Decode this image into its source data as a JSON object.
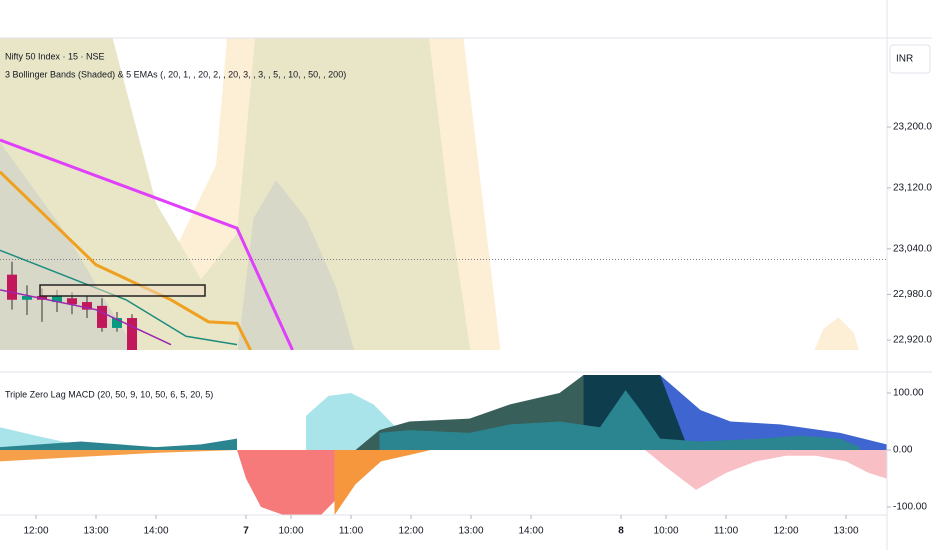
{
  "chart_data": [
    {
      "type": "candlestick",
      "title": "Nifty 50 Index · 15 · NSE",
      "subtitle": "3 Bollinger Bands (Shaded) & 5 EMAs (, 20, 1, , 20, 2, , 20, 3, , 3, , 5, , 10, , 50, , 200)",
      "currency": "INR",
      "xlim": [
        -2.4,
        56.73
      ],
      "ylim": [
        22907,
        23317
      ],
      "yticks": [
        {
          "value": 23200,
          "label": "23,200.00"
        },
        {
          "value": 23120,
          "label": "23,120.00"
        },
        {
          "value": 23040,
          "label": "23,040.00"
        },
        {
          "value": 22980,
          "label": "22,980.00"
        },
        {
          "value": 22920,
          "label": "22,920.00"
        }
      ],
      "price_line": 23026,
      "bands": [
        {
          "color": "#fdefd6",
          "x": [
            -2.4,
            4.3,
            6.3,
            9.3,
            12,
            13.1,
            20,
            28,
            31
          ],
          "upper": [
            23400,
            23400,
            23150,
            23040,
            23150,
            23400,
            23400,
            23400,
            22900
          ],
          "lower": [
            22880,
            22880,
            22880,
            22880,
            22880,
            22880,
            22880,
            22880,
            22880
          ]
        },
        {
          "color": "#fdefd6",
          "x": [
            51.3,
            52.5,
            53.5,
            54.5,
            55.3
          ],
          "upper": [
            22880,
            22935,
            22950,
            22930,
            22880
          ],
          "lower": [
            22880,
            22880,
            22880,
            22880,
            22880
          ]
        },
        {
          "color": "#e8e6c6",
          "x": [
            -2.4,
            4,
            8,
            11,
            13.4,
            15,
            20,
            24,
            26,
            27.5,
            29
          ],
          "upper": [
            23400,
            23400,
            23100,
            23000,
            23060,
            23400,
            23400,
            23400,
            23350,
            23100,
            22900
          ],
          "lower": [
            22880,
            22880,
            22880,
            22880,
            22880,
            22880,
            22880,
            22880,
            22880,
            22880,
            22880
          ]
        },
        {
          "color": "#d8d8c8",
          "x": [
            -2.4,
            2,
            5,
            7.5
          ],
          "upper": [
            23180,
            23060,
            22960,
            22880
          ],
          "lower": [
            22880,
            22880,
            22880,
            22880
          ]
        },
        {
          "color": "#d8d8c8",
          "x": [
            13.4,
            14.5,
            16,
            18,
            20,
            21.6
          ],
          "upper": [
            22900,
            23080,
            23130,
            23080,
            22990,
            22880
          ],
          "lower": [
            22880,
            22880,
            22880,
            22880,
            22880,
            22880
          ]
        }
      ],
      "series": [
        {
          "color": "#e040fb",
          "width": 3,
          "x": [
            -2.4,
            13.4,
            17.1
          ],
          "values": [
            23183,
            23067,
            22907
          ]
        },
        {
          "color": "#f0a020",
          "width": 3,
          "x": [
            -2.4,
            4,
            9,
            11.5,
            13.4,
            14.3
          ],
          "values": [
            23141,
            23019,
            22973,
            22944,
            22942,
            22907
          ]
        },
        {
          "color": "#1e8c7e",
          "width": 1.5,
          "x": [
            -2.4,
            2,
            6,
            10,
            13.4
          ],
          "values": [
            23038,
            23004,
            22973,
            22925,
            22914
          ]
        },
        {
          "color": "#9c27b0",
          "width": 1.5,
          "x": [
            -2.4,
            4,
            9
          ],
          "values": [
            22986,
            22960,
            22914
          ]
        }
      ],
      "candles": {
        "up_color": "#089981",
        "down_color": "#c2185b",
        "x": [
          -1.6,
          -0.6,
          0.4,
          1.4,
          2.4,
          3.4,
          4.4,
          5.4,
          6.4
        ],
        "open": [
          23006,
          22973,
          22978,
          22970,
          22975,
          22970,
          22965,
          22936,
          22949
        ],
        "high": [
          23023,
          22992,
          22988,
          22986,
          22983,
          22978,
          22975,
          22957,
          22954
        ],
        "low": [
          22960,
          22953,
          22944,
          22957,
          22954,
          22949,
          22931,
          22931,
          22907
        ],
        "close": [
          22973,
          22978,
          22973,
          22978,
          22967,
          22960,
          22936,
          22949,
          22907
        ]
      }
    },
    {
      "type": "area",
      "title": "Triple Zero Lag MACD (20, 50, 9, 10, 50, 6, 5, 20, 5)",
      "xlim": [
        -2.4,
        56.73
      ],
      "ylim": [
        -114,
        131.6
      ],
      "yticks": [
        {
          "value": 100,
          "label": "100.00"
        },
        {
          "value": 0,
          "label": "0.00"
        },
        {
          "value": -100,
          "label": "-100.00"
        }
      ],
      "xticks": [
        {
          "value": 0,
          "label": "12:00"
        },
        {
          "value": 4,
          "label": "13:00"
        },
        {
          "value": 8,
          "label": "14:00"
        },
        {
          "value": 14,
          "label": "7"
        },
        {
          "value": 17,
          "label": "10:00"
        },
        {
          "value": 21,
          "label": "11:00"
        },
        {
          "value": 25,
          "label": "12:00"
        },
        {
          "value": 29,
          "label": "13:00"
        },
        {
          "value": 33,
          "label": "14:00"
        },
        {
          "value": 39,
          "label": "8"
        },
        {
          "value": 42,
          "label": "10:00"
        },
        {
          "value": 46,
          "label": "11:00"
        },
        {
          "value": 50,
          "label": "12:00"
        },
        {
          "value": 54,
          "label": "13:00"
        }
      ],
      "series": [
        {
          "color": "#a8e4ea",
          "x": [
            -2.4,
            0,
            3,
            6,
            9,
            11,
            13.4,
            17,
            18,
            19.5,
            21,
            22.5,
            24,
            25.5
          ],
          "values": [
            40,
            25,
            8,
            5,
            0,
            5,
            15,
            null,
            60,
            95,
            100,
            80,
            40,
            20
          ]
        },
        {
          "color": "#f6a04a",
          "x": [
            -2.4,
            3,
            8,
            13.4
          ],
          "values": [
            -20,
            -12,
            -5,
            0
          ]
        },
        {
          "color": "#f67a7a",
          "x": [
            13.4,
            14,
            15,
            16.5,
            19,
            21,
            21.3
          ],
          "values": [
            0,
            -50,
            -100,
            -114,
            -114,
            -60,
            0
          ]
        },
        {
          "color": "#f6973e",
          "x": [
            19.9,
            21.3,
            23,
            25.5,
            26.3
          ],
          "values": [
            -114,
            -60,
            -20,
            -5,
            0
          ]
        },
        {
          "color": "#f8c0c4",
          "x": [
            40.6,
            42,
            44,
            46,
            48,
            50,
            52,
            54,
            55.5,
            56.7
          ],
          "values": [
            0,
            -30,
            -70,
            -40,
            -20,
            -10,
            -10,
            -20,
            -40,
            -50
          ]
        },
        {
          "color": "#3f65d0",
          "x": [
            39,
            41.6,
            44.3,
            46.3,
            49.6,
            53.6,
            56.7
          ],
          "values": [
            131.6,
            131.6,
            70,
            50,
            45,
            30,
            10
          ]
        },
        {
          "color": "#385f59",
          "x": [
            21.3,
            22.9,
            24.9,
            28.9,
            31.6,
            34.9,
            36.5,
            38
          ],
          "values": [
            0,
            35,
            50,
            55,
            80,
            100,
            131.6,
            131.6
          ]
        },
        {
          "color": "#0e3d4e",
          "x": [
            36.5,
            38,
            41.6,
            43.5
          ],
          "values": [
            131.6,
            131.6,
            131.6,
            0
          ]
        },
        {
          "color": "#2b8590",
          "x": [
            -2.4,
            3,
            8,
            11,
            13.4,
            21.3,
            22.9,
            24.9,
            28.9,
            31.6,
            34.9,
            37.6,
            39.3,
            40.3,
            41.6,
            44.3,
            48.3,
            50.9,
            53.6,
            54.9
          ],
          "values": [
            5,
            15,
            5,
            10,
            20,
            null,
            30,
            35,
            30,
            45,
            50,
            40,
            105,
            70,
            20,
            15,
            20,
            25,
            20,
            5
          ]
        }
      ]
    }
  ]
}
